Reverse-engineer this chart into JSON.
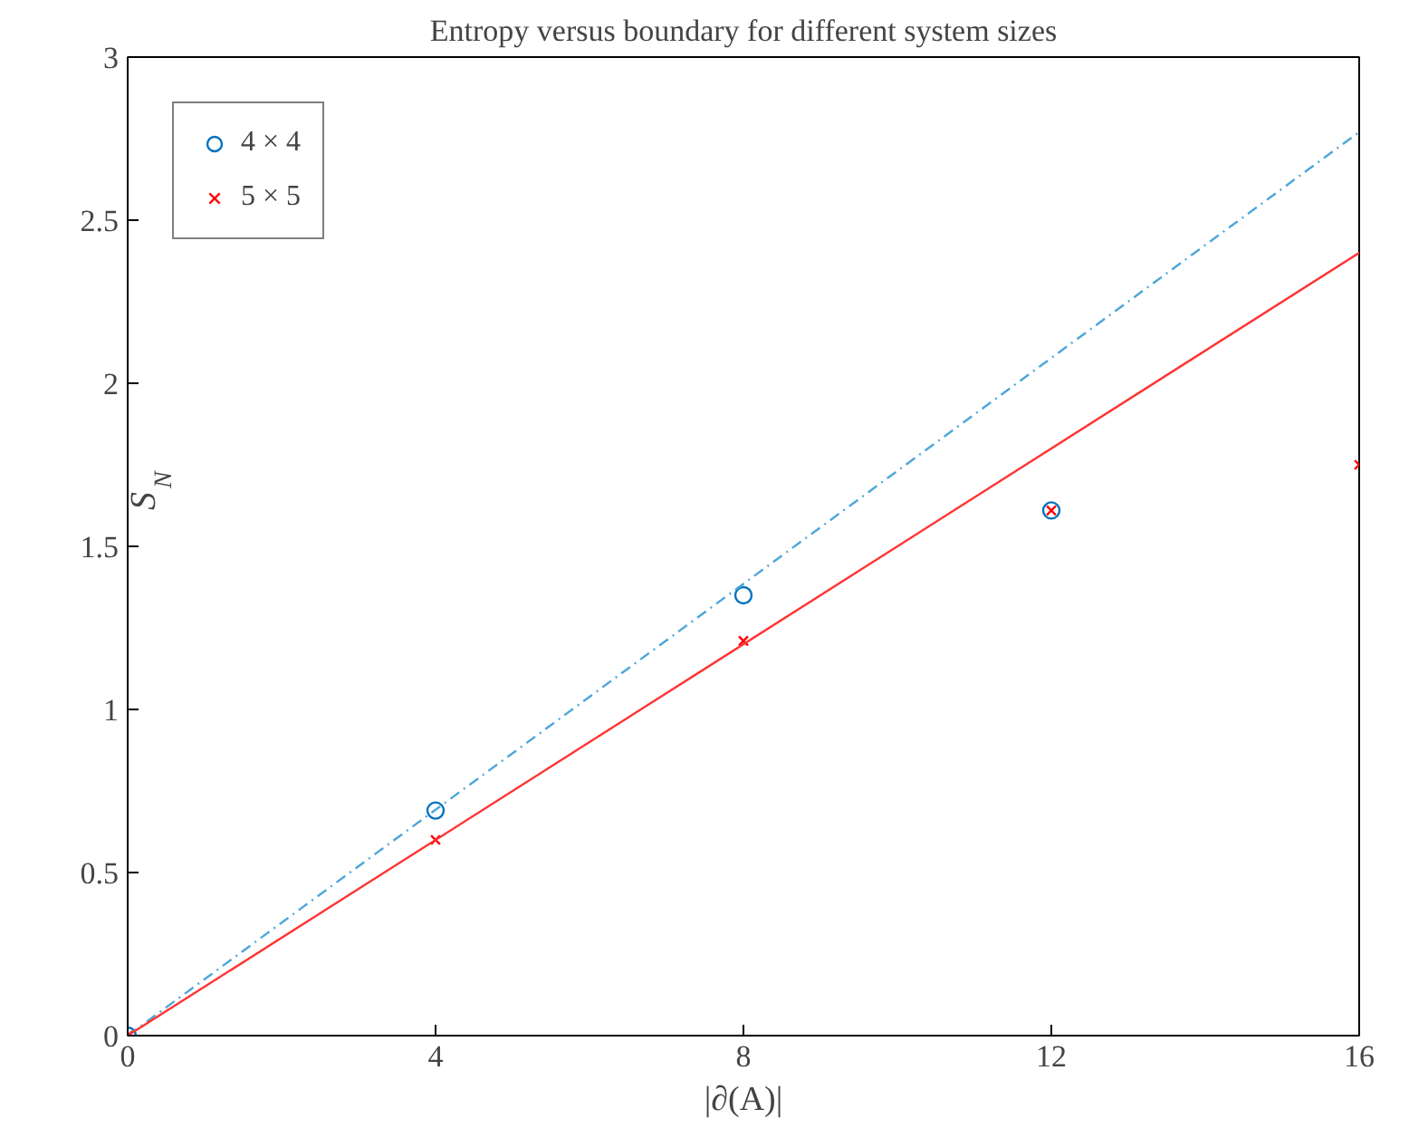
{
  "chart_data": {
    "type": "scatter",
    "title": "Entropy versus boundary for different system sizes",
    "xlabel": "|∂(A)|",
    "ylabel": "S$_{N}$",
    "xlim": [
      0,
      16
    ],
    "xticks": [
      0,
      4,
      8,
      12,
      16
    ],
    "ylim": [
      0,
      3
    ],
    "yticks": [
      0,
      0.5,
      1,
      1.5,
      2,
      2.5,
      3
    ],
    "grid": false,
    "legend": "top left",
    "series": [
      {
        "name": "4 × 4",
        "marker": "circle",
        "color": "#0072bd",
        "x": [
          0,
          4,
          8,
          12
        ],
        "values": [
          0,
          0.69,
          1.35,
          1.61
        ]
      },
      {
        "name": "5 × 5",
        "marker": "cross",
        "color": "#ff0000",
        "x": [
          0,
          4,
          8,
          12,
          16
        ],
        "values": [
          0,
          0.6,
          1.21,
          1.61,
          1.75
        ]
      },
      {
        "type": "line",
        "line_style": "dashed",
        "color": "#4da6d9",
        "x": [
          0,
          16
        ],
        "values": [
          0,
          2.77
        ]
      },
      {
        "type": "line",
        "line_style": "solid",
        "color": "#ff3333",
        "x": [
          0,
          16
        ],
        "values": [
          0,
          2.4
        ]
      }
    ]
  }
}
